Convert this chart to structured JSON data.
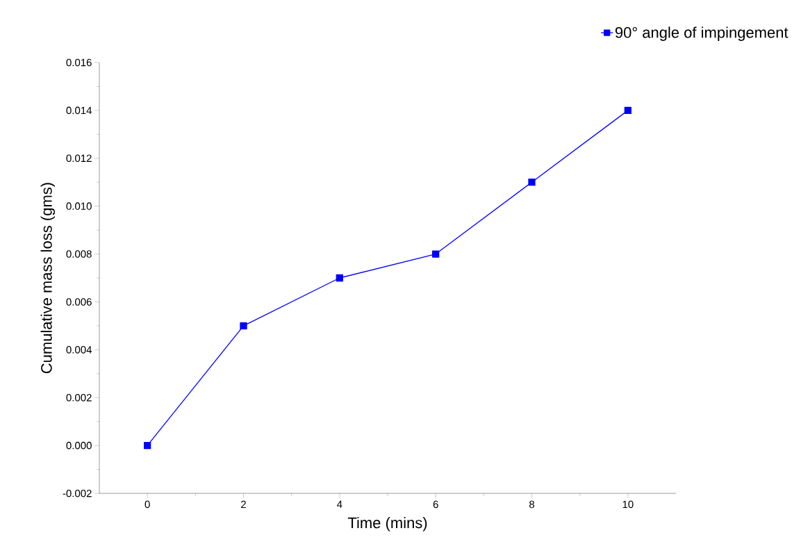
{
  "chart_data": {
    "type": "line",
    "xlabel": "Time (mins)",
    "ylabel": "Cumulative mass loss (gms)",
    "x": [
      0,
      2,
      4,
      6,
      8,
      10
    ],
    "series": [
      {
        "name": "90° angle of impingement",
        "color": "#0000ff",
        "values": [
          0.0,
          0.005,
          0.007,
          0.008,
          0.011,
          0.014
        ]
      }
    ],
    "xlim": [
      -1,
      11
    ],
    "xticks": [
      0,
      2,
      4,
      6,
      8,
      10
    ],
    "ylim": [
      -0.002,
      0.016
    ],
    "yticks": [
      {
        "value": -0.002,
        "label": "-0.002"
      },
      {
        "value": 0.0,
        "label": "0.000"
      },
      {
        "value": 0.002,
        "label": "0.002"
      },
      {
        "value": 0.004,
        "label": "0.004"
      },
      {
        "value": 0.006,
        "label": "0.006"
      },
      {
        "value": 0.008,
        "label": "0.008"
      },
      {
        "value": 0.01,
        "label": "0.010"
      },
      {
        "value": 0.012,
        "label": "0.012"
      },
      {
        "value": 0.014,
        "label": "0.014"
      },
      {
        "value": 0.016,
        "label": "0.016"
      }
    ],
    "grid": false,
    "legend": "top right",
    "marker": "square",
    "line_style": "solid"
  }
}
